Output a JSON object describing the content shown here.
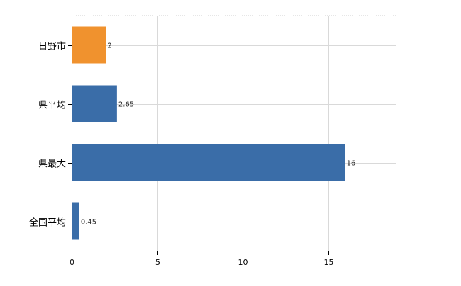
{
  "chart_data": {
    "type": "bar",
    "orientation": "horizontal",
    "categories": [
      "日野市",
      "県平均",
      "県最大",
      "全国平均"
    ],
    "values": [
      2,
      2.65,
      16,
      0.45
    ],
    "value_labels": [
      "2",
      "2.65",
      "16",
      "0.45"
    ],
    "bar_colors": [
      "#F0922E",
      "#3A6DA8",
      "#3A6DA8",
      "#3A6DA8"
    ],
    "xlim": [
      0,
      19
    ],
    "xticks": [
      0,
      5,
      10,
      15
    ],
    "xtick_labels": [
      "0",
      "5",
      "10",
      "15"
    ],
    "grid": true,
    "title": "",
    "xlabel": "",
    "ylabel": ""
  }
}
